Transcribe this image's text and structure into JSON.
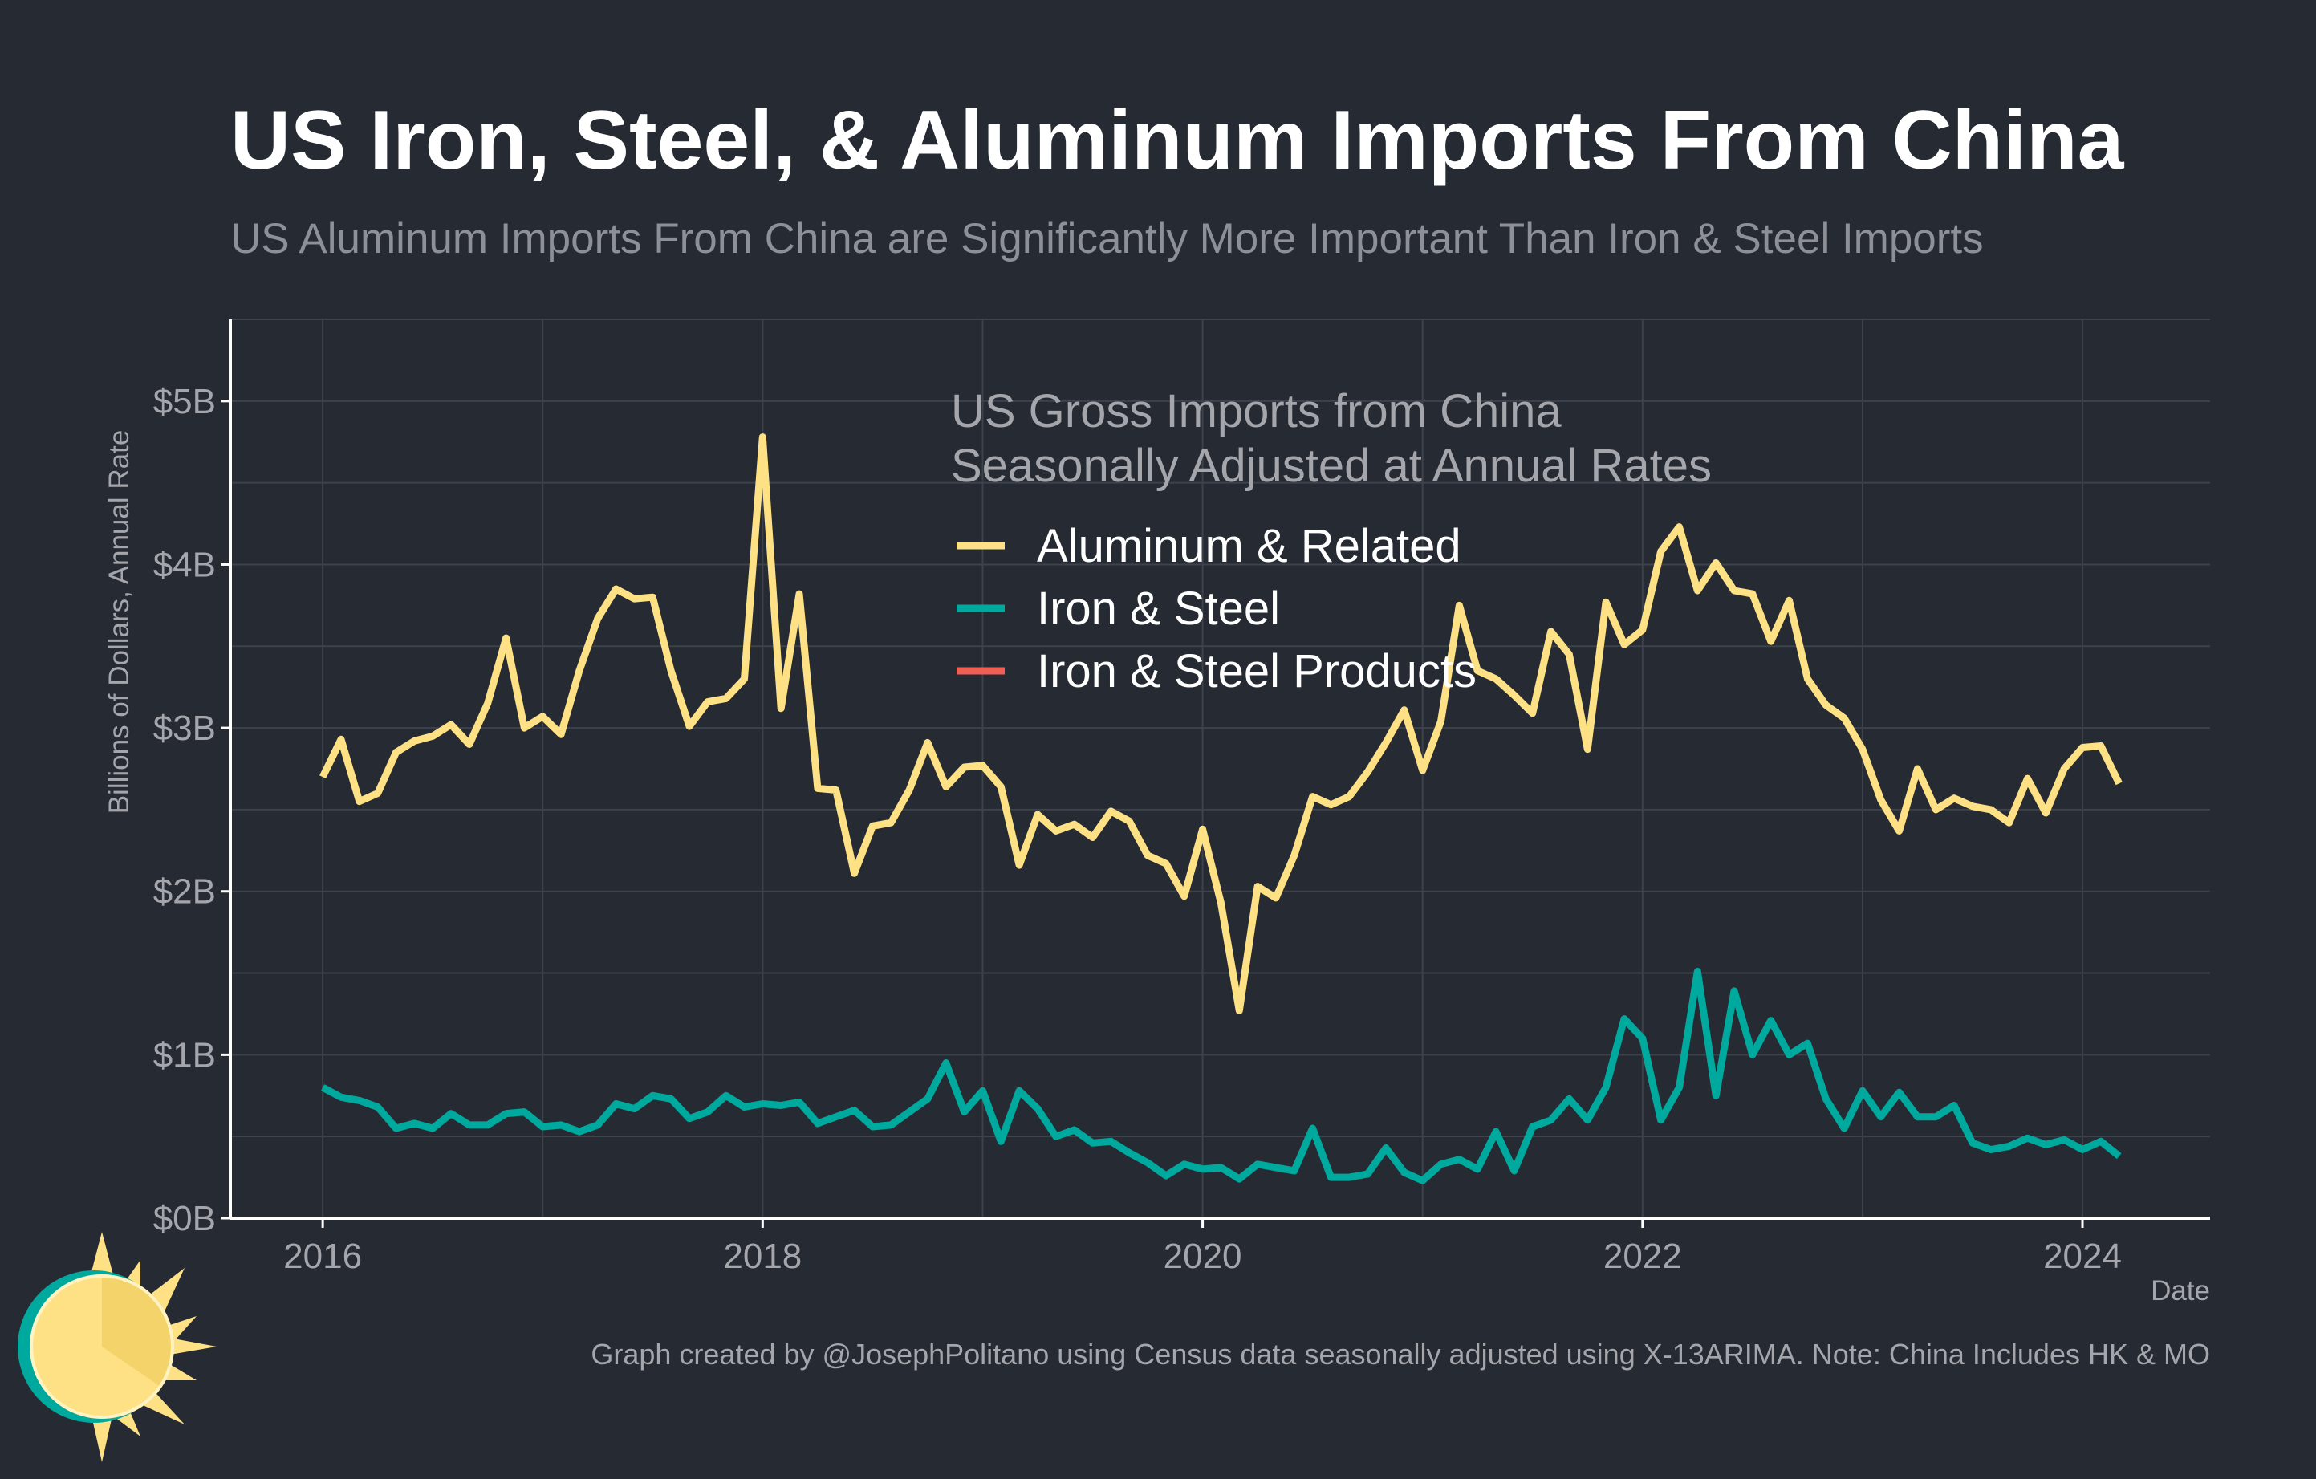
{
  "title": "US Iron, Steel, & Aluminum Imports From China",
  "subtitle": "US Aluminum Imports From China are Significantly More Important Than Iron & Steel Imports",
  "caption": "Graph created by @JosephPolitano using Census data seasonally adjusted using X-13ARIMA. Note: China Includes HK & MO",
  "colors": {
    "background": "#252a33",
    "aluminum": "#fee185",
    "iron_steel": "#00a99d",
    "iron_steel_products": "#ee6055",
    "grid": "#3d424b",
    "axis": "#ffffff"
  },
  "chart_data": {
    "type": "line",
    "xlabel": "Date",
    "ylabel": "Billions of Dollars, Annual Rate",
    "ylim": [
      0,
      5.5
    ],
    "y_ticks": [
      0,
      1,
      2,
      3,
      4,
      5
    ],
    "y_tick_labels": [
      "$0B",
      "$1B",
      "$2B",
      "$3B",
      "$4B",
      "$5B"
    ],
    "x_range": [
      2015.58,
      2024.58
    ],
    "x_ticks": [
      2016,
      2018,
      2020,
      2022,
      2024
    ],
    "x_tick_labels": [
      "2016",
      "2018",
      "2020",
      "2022",
      "2024"
    ],
    "grid": true,
    "legend": {
      "title_line1": "US Gross Imports from China",
      "title_line2": "Seasonally Adjusted at Annual Rates",
      "placement": "top-center"
    },
    "x_start": "2016-01",
    "series": [
      {
        "name": "Aluminum & Related",
        "color": "#fee185",
        "values": [
          2.7,
          2.93,
          2.55,
          2.6,
          2.85,
          2.92,
          2.95,
          3.02,
          2.9,
          3.15,
          3.55,
          3.0,
          3.07,
          2.96,
          3.35,
          3.67,
          3.85,
          3.79,
          3.8,
          3.35,
          3.01,
          3.16,
          3.18,
          3.3,
          4.78,
          3.12,
          3.82,
          2.63,
          2.62,
          2.11,
          2.4,
          2.42,
          2.62,
          2.91,
          2.64,
          2.76,
          2.77,
          2.64,
          2.16,
          2.47,
          2.37,
          2.41,
          2.33,
          2.49,
          2.43,
          2.22,
          2.17,
          1.97,
          2.38,
          1.93,
          1.27,
          2.03,
          1.96,
          2.22,
          2.58,
          2.53,
          2.58,
          2.73,
          2.91,
          3.11,
          2.74,
          3.04,
          3.75,
          3.35,
          3.3,
          3.2,
          3.09,
          3.59,
          3.45,
          2.87,
          3.77,
          3.51,
          3.6,
          4.08,
          4.23,
          3.84,
          4.01,
          3.84,
          3.82,
          3.53,
          3.78,
          3.3,
          3.14,
          3.06,
          2.87,
          2.56,
          2.37,
          2.75,
          2.5,
          2.57,
          2.52,
          2.5,
          2.42,
          2.69,
          2.48,
          2.75,
          2.88,
          2.89,
          2.66
        ]
      },
      {
        "name": "Iron & Steel",
        "color": "#00a99d",
        "values": [
          0.8,
          0.74,
          0.72,
          0.68,
          0.55,
          0.58,
          0.55,
          0.64,
          0.57,
          0.57,
          0.64,
          0.65,
          0.56,
          0.57,
          0.53,
          0.57,
          0.7,
          0.67,
          0.75,
          0.73,
          0.61,
          0.65,
          0.75,
          0.68,
          0.7,
          0.69,
          0.71,
          0.58,
          0.62,
          0.66,
          0.56,
          0.57,
          0.65,
          0.73,
          0.95,
          0.65,
          0.78,
          0.47,
          0.78,
          0.67,
          0.5,
          0.54,
          0.46,
          0.47,
          0.4,
          0.34,
          0.26,
          0.33,
          0.3,
          0.31,
          0.24,
          0.33,
          0.31,
          0.29,
          0.55,
          0.25,
          0.25,
          0.27,
          0.43,
          0.28,
          0.23,
          0.33,
          0.36,
          0.3,
          0.53,
          0.29,
          0.56,
          0.6,
          0.73,
          0.6,
          0.8,
          1.22,
          1.1,
          0.6,
          0.8,
          1.51,
          0.75,
          1.39,
          1.0,
          1.21,
          1.0,
          1.07,
          0.73,
          0.55,
          0.78,
          0.62,
          0.77,
          0.62,
          0.62,
          0.69,
          0.46,
          0.42,
          0.44,
          0.49,
          0.45,
          0.48,
          0.42,
          0.47,
          0.38
        ]
      },
      {
        "name": "Iron & Steel Products",
        "color": "#ee6055",
        "values": []
      }
    ]
  }
}
